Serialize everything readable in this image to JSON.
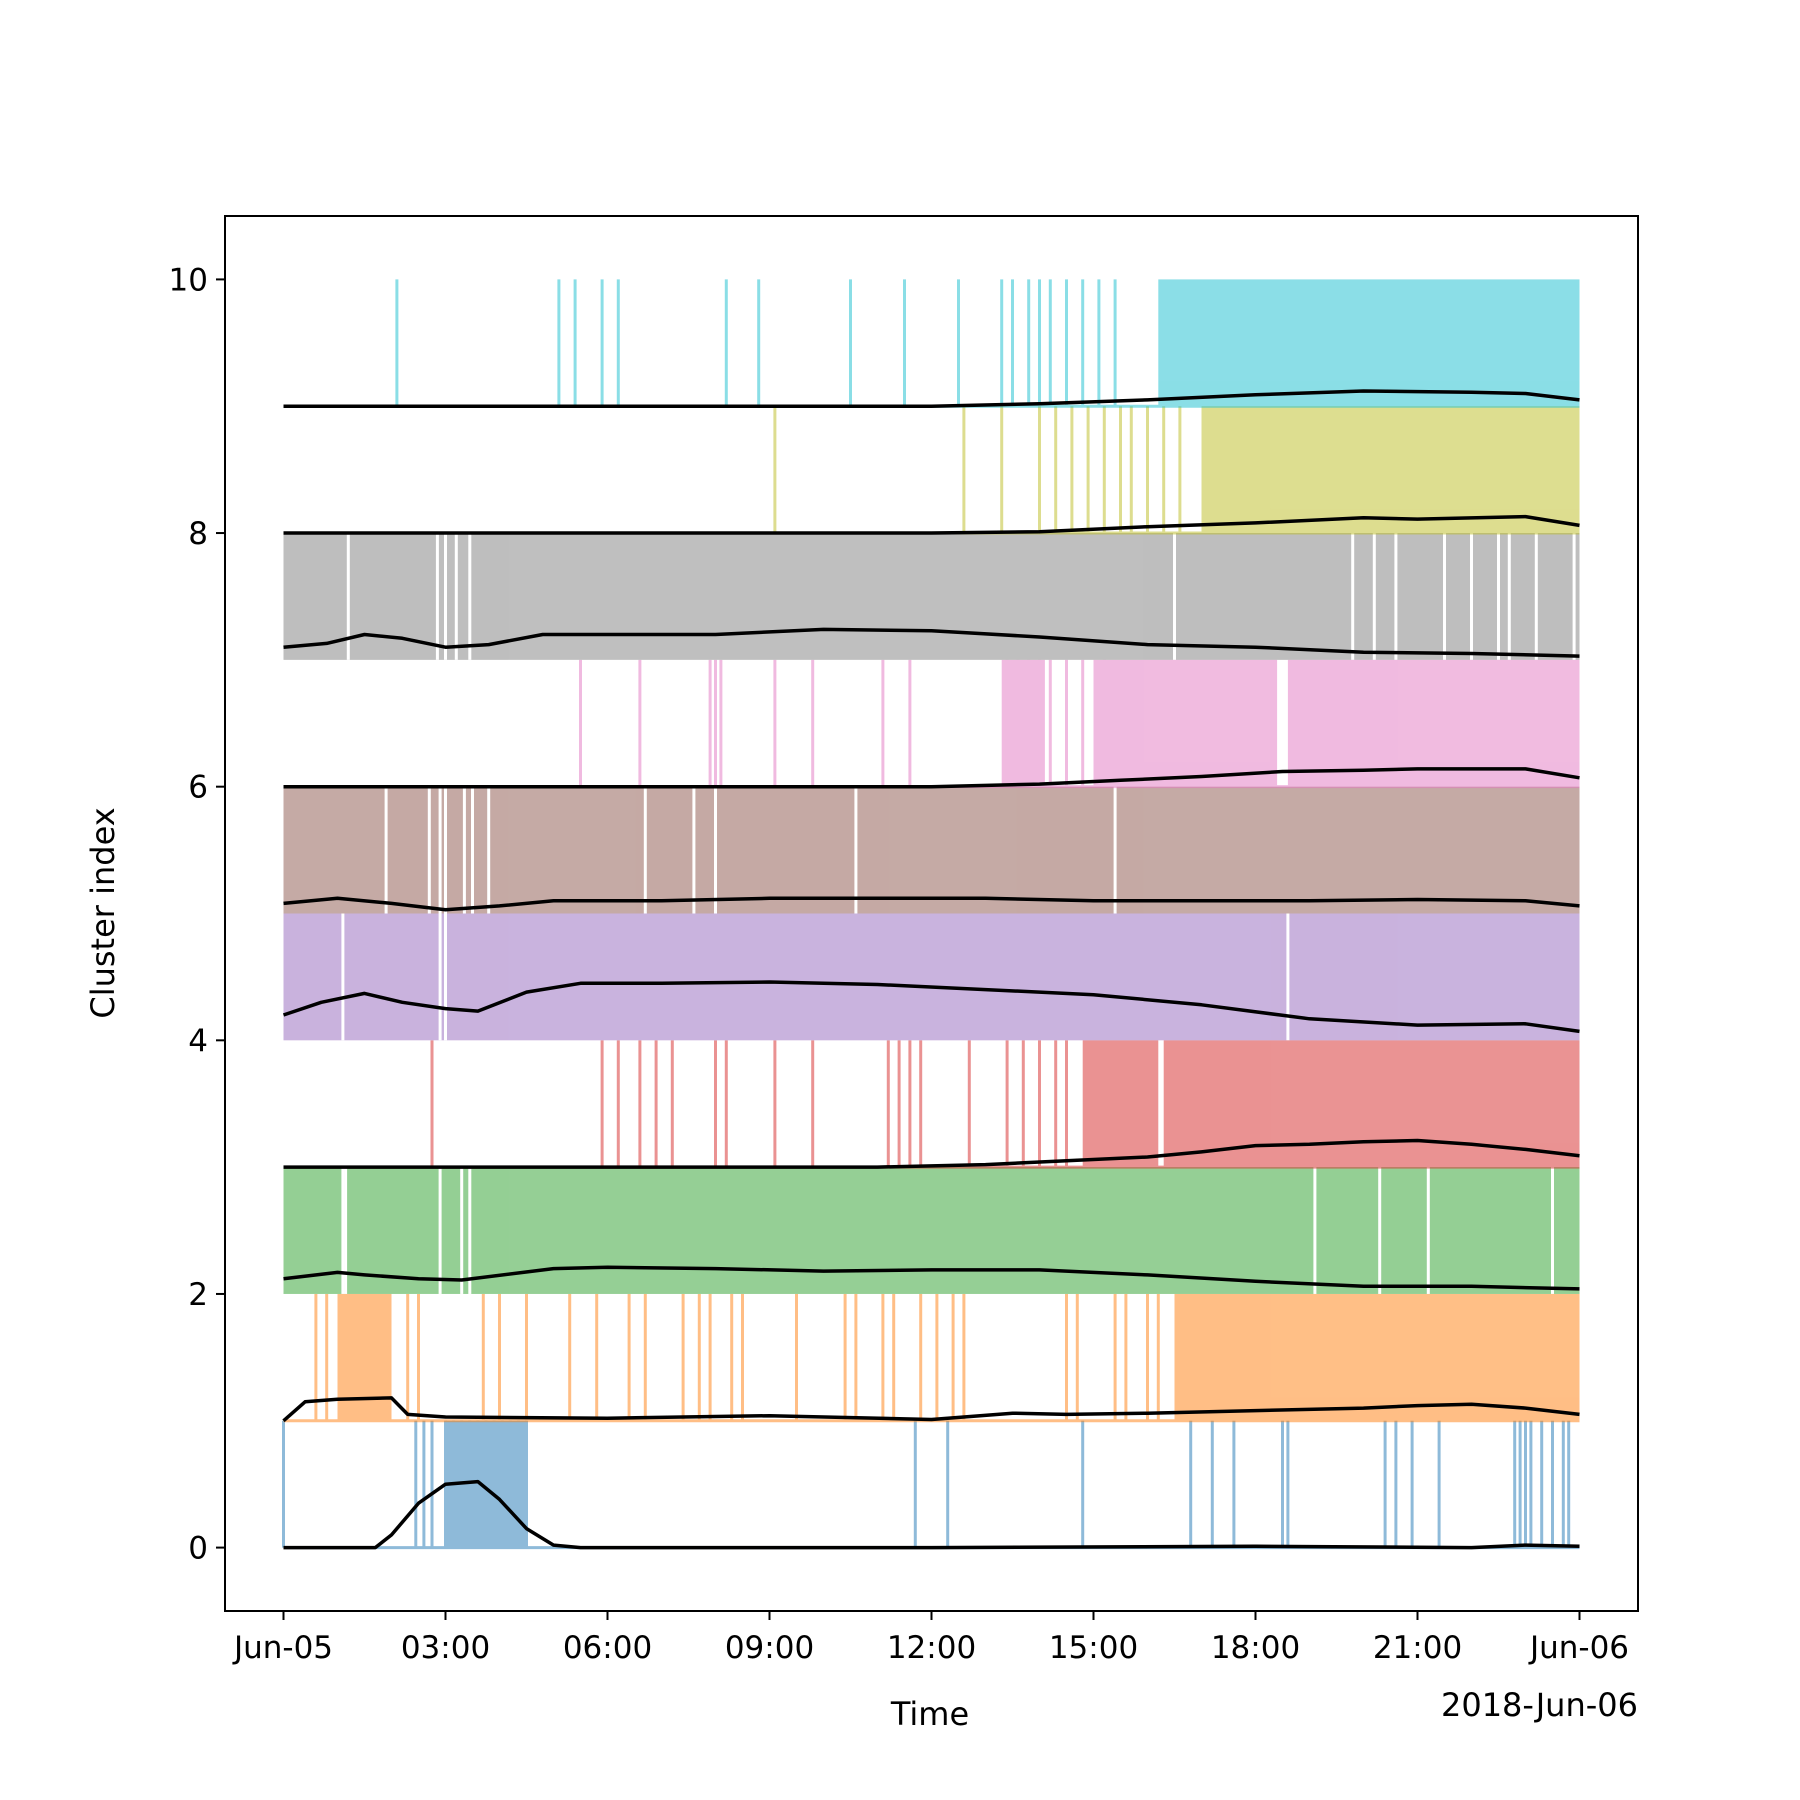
{
  "chart_data": {
    "type": "line",
    "xlabel": "Time",
    "ylabel": "Cluster index",
    "x_offset_label": "2018-Jun-06",
    "xlim": [
      "2018-06-04 22:55",
      "2018-06-06 01:05"
    ],
    "ylim": [
      -0.5,
      10.5
    ],
    "x_ticks": [
      {
        "t": "2018-06-05 00:00",
        "label": "Jun-05"
      },
      {
        "t": "2018-06-05 03:00",
        "label": "03:00"
      },
      {
        "t": "2018-06-05 06:00",
        "label": "06:00"
      },
      {
        "t": "2018-06-05 09:00",
        "label": "09:00"
      },
      {
        "t": "2018-06-05 12:00",
        "label": "12:00"
      },
      {
        "t": "2018-06-05 15:00",
        "label": "15:00"
      },
      {
        "t": "2018-06-05 18:00",
        "label": "18:00"
      },
      {
        "t": "2018-06-05 21:00",
        "label": "21:00"
      },
      {
        "t": "2018-06-06 00:00",
        "label": "Jun-06"
      }
    ],
    "y_ticks": [
      {
        "value": 0,
        "label": "0"
      },
      {
        "value": 2,
        "label": "2"
      },
      {
        "value": 4,
        "label": "4"
      },
      {
        "value": 6,
        "label": "6"
      },
      {
        "value": 8,
        "label": "8"
      },
      {
        "value": 10,
        "label": "10"
      }
    ],
    "grid": false,
    "legend": "none",
    "series": [
      {
        "cluster": 0,
        "color": "#1f77b4",
        "base": 0,
        "top": 1,
        "style": "spikes",
        "spikes_hours": [
          0,
          2.45,
          2.6,
          2.75,
          3.0,
          3.15,
          3.3,
          3.45,
          3.6,
          3.75,
          3.9,
          4.05,
          4.2,
          4.35,
          4.5,
          11.7,
          12.3,
          14.8,
          16.8,
          17.2,
          17.6,
          18.5,
          18.6,
          20.4,
          20.6,
          20.9,
          21.4,
          22.8,
          22.9,
          23.0,
          23.1,
          23.3,
          23.5,
          23.7,
          23.8
        ],
        "fills_hours": [
          [
            3.0,
            4.5
          ]
        ],
        "mean_points": [
          [
            0,
            0
          ],
          [
            1.7,
            0
          ],
          [
            2.0,
            0.1
          ],
          [
            2.5,
            0.35
          ],
          [
            3.0,
            0.5
          ],
          [
            3.6,
            0.52
          ],
          [
            4.0,
            0.38
          ],
          [
            4.5,
            0.15
          ],
          [
            5.0,
            0.02
          ],
          [
            5.5,
            0
          ],
          [
            12,
            0
          ],
          [
            18,
            0.01
          ],
          [
            22,
            0
          ],
          [
            23,
            0.02
          ],
          [
            24,
            0.01
          ]
        ]
      },
      {
        "cluster": 1,
        "color": "#ff7f0e",
        "base": 1,
        "top": 2,
        "style": "spikes",
        "spikes_hours": [
          0.6,
          0.8,
          1.3,
          1.8,
          2.3,
          2.5,
          3.7,
          4.0,
          4.5,
          5.3,
          5.8,
          6.4,
          6.7,
          7.4,
          7.7,
          7.9,
          8.3,
          8.5,
          9.5,
          10.4,
          10.6,
          11.1,
          11.3,
          11.8,
          12.1,
          12.4,
          12.6,
          14.5,
          14.7,
          15.4,
          15.6,
          16.0,
          16.2
        ],
        "fills_hours": [
          [
            1.0,
            2.0
          ],
          [
            16.5,
            24.0
          ]
        ],
        "mean_points": [
          [
            0,
            1.0
          ],
          [
            0.4,
            1.15
          ],
          [
            1.0,
            1.17
          ],
          [
            2.0,
            1.18
          ],
          [
            2.3,
            1.05
          ],
          [
            3,
            1.03
          ],
          [
            6,
            1.02
          ],
          [
            9,
            1.04
          ],
          [
            12,
            1.01
          ],
          [
            13.5,
            1.06
          ],
          [
            14.5,
            1.05
          ],
          [
            16,
            1.06
          ],
          [
            18,
            1.08
          ],
          [
            20,
            1.1
          ],
          [
            21,
            1.12
          ],
          [
            22,
            1.13
          ],
          [
            23,
            1.1
          ],
          [
            24,
            1.05
          ]
        ]
      },
      {
        "cluster": 2,
        "color": "#2ca02c",
        "base": 2,
        "top": 3,
        "style": "fill",
        "gaps_hours": [
          1.1,
          1.15,
          2.9,
          3.3,
          3.45,
          19.1,
          20.3,
          21.2,
          23.5
        ],
        "mean_points": [
          [
            0,
            2.12
          ],
          [
            1.0,
            2.17
          ],
          [
            1.5,
            2.15
          ],
          [
            2.5,
            2.12
          ],
          [
            3.3,
            2.11
          ],
          [
            5.0,
            2.2
          ],
          [
            6,
            2.21
          ],
          [
            8,
            2.2
          ],
          [
            10,
            2.18
          ],
          [
            12,
            2.19
          ],
          [
            14,
            2.19
          ],
          [
            16,
            2.15
          ],
          [
            18,
            2.1
          ],
          [
            20,
            2.06
          ],
          [
            22,
            2.06
          ],
          [
            24,
            2.04
          ]
        ]
      },
      {
        "cluster": 3,
        "color": "#d62728",
        "base": 3,
        "top": 4,
        "style": "spikes",
        "spikes_hours": [
          2.75,
          5.9,
          6.2,
          6.6,
          6.9,
          7.2,
          8.0,
          8.2,
          9.1,
          9.8,
          11.2,
          11.4,
          11.6,
          11.8,
          12.7,
          13.4,
          13.7,
          14.0,
          14.3,
          14.5
        ],
        "fills_hours": [
          [
            14.8,
            16.2
          ],
          [
            16.3,
            24.0
          ]
        ],
        "mean_points": [
          [
            0,
            3.0
          ],
          [
            6,
            3.0
          ],
          [
            9,
            3.0
          ],
          [
            11,
            3.0
          ],
          [
            13,
            3.02
          ],
          [
            14.5,
            3.05
          ],
          [
            16,
            3.08
          ],
          [
            17,
            3.12
          ],
          [
            18,
            3.17
          ],
          [
            19,
            3.18
          ],
          [
            20,
            3.2
          ],
          [
            21,
            3.21
          ],
          [
            22,
            3.18
          ],
          [
            23,
            3.14
          ],
          [
            24,
            3.09
          ]
        ]
      },
      {
        "cluster": 4,
        "color": "#9467bd",
        "base": 4,
        "top": 5,
        "style": "fill",
        "gaps_hours": [
          1.1,
          2.9,
          3.0,
          18.6
        ],
        "mean_points": [
          [
            0,
            4.2
          ],
          [
            0.7,
            4.3
          ],
          [
            1.5,
            4.37
          ],
          [
            2.2,
            4.3
          ],
          [
            3.0,
            4.25
          ],
          [
            3.6,
            4.23
          ],
          [
            4.5,
            4.38
          ],
          [
            5.5,
            4.45
          ],
          [
            7,
            4.45
          ],
          [
            9,
            4.46
          ],
          [
            11,
            4.44
          ],
          [
            13,
            4.4
          ],
          [
            15,
            4.36
          ],
          [
            17,
            4.28
          ],
          [
            19,
            4.17
          ],
          [
            21,
            4.12
          ],
          [
            23,
            4.13
          ],
          [
            24,
            4.07
          ]
        ]
      },
      {
        "cluster": 5,
        "color": "#8c564b",
        "base": 5,
        "top": 6,
        "style": "fill",
        "gaps_hours": [
          1.9,
          2.7,
          2.9,
          3.0,
          3.35,
          3.5,
          3.8,
          6.7,
          7.6,
          8.0,
          10.6,
          15.4
        ],
        "mean_points": [
          [
            0,
            5.08
          ],
          [
            1,
            5.12
          ],
          [
            2,
            5.08
          ],
          [
            3,
            5.03
          ],
          [
            4,
            5.06
          ],
          [
            5,
            5.1
          ],
          [
            7,
            5.1
          ],
          [
            9,
            5.12
          ],
          [
            11,
            5.12
          ],
          [
            13,
            5.12
          ],
          [
            15,
            5.1
          ],
          [
            17,
            5.1
          ],
          [
            19,
            5.1
          ],
          [
            21,
            5.11
          ],
          [
            23,
            5.1
          ],
          [
            24,
            5.06
          ]
        ]
      },
      {
        "cluster": 6,
        "color": "#e377c2",
        "base": 6,
        "top": 7,
        "style": "spikes",
        "spikes_hours": [
          5.5,
          6.6,
          7.9,
          8.0,
          8.1,
          9.1,
          9.8,
          11.1,
          11.6,
          13.4,
          13.6,
          13.8,
          14.0,
          14.2,
          14.5,
          14.8,
          15.2
        ],
        "fills_hours": [
          [
            13.3,
            14.1
          ],
          [
            15.0,
            18.4
          ],
          [
            18.6,
            24.0
          ]
        ],
        "mean_points": [
          [
            0,
            6.0
          ],
          [
            6,
            6.0
          ],
          [
            9,
            6.0
          ],
          [
            12,
            6.0
          ],
          [
            14,
            6.02
          ],
          [
            15.5,
            6.05
          ],
          [
            17,
            6.08
          ],
          [
            18.5,
            6.12
          ],
          [
            20,
            6.13
          ],
          [
            21,
            6.14
          ],
          [
            23,
            6.14
          ],
          [
            24,
            6.07
          ]
        ]
      },
      {
        "cluster": 7,
        "color": "#7f7f7f",
        "base": 7,
        "top": 8,
        "style": "fill",
        "gaps_hours": [
          1.2,
          2.85,
          3.0,
          3.2,
          3.45,
          16.5,
          19.8,
          20.2,
          20.6,
          21.5,
          22.0,
          22.5,
          22.7,
          23.2,
          23.9
        ],
        "mean_points": [
          [
            0,
            7.1
          ],
          [
            0.8,
            7.13
          ],
          [
            1.5,
            7.2
          ],
          [
            2.2,
            7.17
          ],
          [
            3.0,
            7.1
          ],
          [
            3.8,
            7.12
          ],
          [
            4.8,
            7.2
          ],
          [
            6,
            7.2
          ],
          [
            8,
            7.2
          ],
          [
            10,
            7.24
          ],
          [
            12,
            7.23
          ],
          [
            14,
            7.18
          ],
          [
            16,
            7.12
          ],
          [
            18,
            7.1
          ],
          [
            20,
            7.06
          ],
          [
            22,
            7.05
          ],
          [
            24,
            7.03
          ]
        ]
      },
      {
        "cluster": 8,
        "color": "#bcbd22",
        "base": 8,
        "top": 9,
        "style": "spikes",
        "spikes_hours": [
          9.1,
          12.6,
          13.3,
          14.0,
          14.3,
          14.6,
          14.9,
          15.2,
          15.5,
          15.7,
          16.0,
          16.3,
          16.6
        ],
        "fills_hours": [
          [
            17.0,
            24.0
          ]
        ],
        "mean_points": [
          [
            0,
            8.0
          ],
          [
            6,
            8.0
          ],
          [
            12,
            8.0
          ],
          [
            14,
            8.01
          ],
          [
            16,
            8.05
          ],
          [
            18,
            8.08
          ],
          [
            20,
            8.12
          ],
          [
            21,
            8.11
          ],
          [
            23,
            8.13
          ],
          [
            24,
            8.06
          ]
        ]
      },
      {
        "cluster": 9,
        "color": "#17becf",
        "base": 9,
        "top": 10,
        "style": "spikes",
        "spikes_hours": [
          2.1,
          5.1,
          5.4,
          5.9,
          6.2,
          8.2,
          8.8,
          10.5,
          11.5,
          12.5,
          13.3,
          13.5,
          13.8,
          14.0,
          14.2,
          14.5,
          14.8,
          15.1,
          15.4
        ],
        "fills_hours": [
          [
            16.2,
            24.0
          ]
        ],
        "mean_points": [
          [
            0,
            9.0
          ],
          [
            6,
            9.0
          ],
          [
            12,
            9.0
          ],
          [
            14,
            9.02
          ],
          [
            16,
            9.05
          ],
          [
            18,
            9.09
          ],
          [
            20,
            9.12
          ],
          [
            22,
            9.11
          ],
          [
            23,
            9.1
          ],
          [
            24,
            9.05
          ]
        ]
      }
    ]
  }
}
